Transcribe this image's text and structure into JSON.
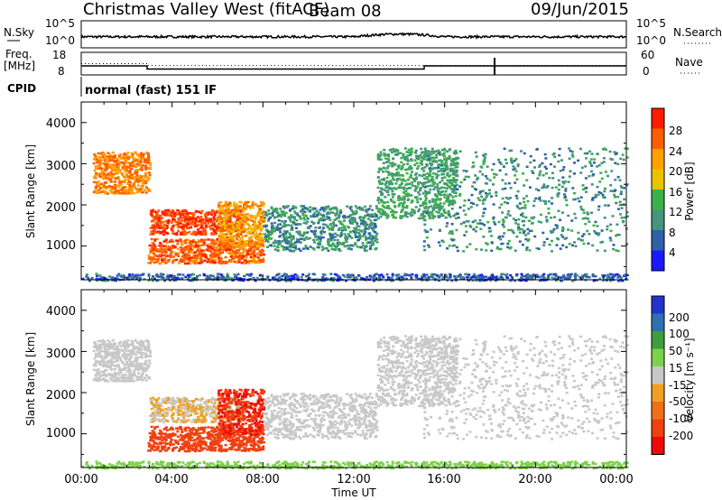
{
  "header": {
    "station": "Christmas Valley West (fitACF)",
    "beam": "Beam 08",
    "date": "09/Jun/2015"
  },
  "noise_panel": {
    "left_label": "N.Sky",
    "right_label": "N.Search",
    "tick_hi": "10^5",
    "tick_lo": "10^0",
    "right_tick_hi": "10^5",
    "right_tick_lo": "10^0"
  },
  "freq_panel": {
    "left_label_line1": "Freq.",
    "left_label_line2": "[MHz]",
    "right_label": "Nave",
    "left_ticks": [
      "18",
      "8"
    ],
    "right_ticks": [
      "60",
      "0"
    ]
  },
  "cpid_panel": {
    "label": "CPID",
    "mode_text": "normal (fast) 151 IF"
  },
  "panels": [
    {
      "name": "power",
      "colorbar_label": "Power [dB]",
      "colorbar_ticks": [
        "28",
        "24",
        "20",
        "16",
        "12",
        "8",
        "4"
      ],
      "colors": [
        "#ff1c00",
        "#ff5e00",
        "#ffa000",
        "#e8c400",
        "#3cb14a",
        "#45947c",
        "#2e61a8",
        "#1a1aff"
      ]
    },
    {
      "name": "velocity",
      "colorbar_label": "Velocity [m s⁻¹]",
      "colorbar_ticks": [
        "200",
        "100",
        "50",
        "15",
        "-15",
        "-50",
        "-100",
        "-200"
      ],
      "colors": [
        "#2233cc",
        "#3070b0",
        "#3e9e3e",
        "#7cd24a",
        "#c8c8c8",
        "#f0a020",
        "#f07018",
        "#f04010",
        "#ee0a0a"
      ]
    }
  ],
  "axes": {
    "ylabel": "Slant Range [km]",
    "xlabel": "Time UT",
    "yticks": [
      "4000",
      "3000",
      "2000",
      "1000"
    ],
    "xticks": [
      "00:00",
      "04:00",
      "08:00",
      "12:00",
      "16:00",
      "20:00",
      "00:00"
    ]
  },
  "chart_data": {
    "type": "heatmap",
    "x_range_hours_ut": [
      0,
      24
    ],
    "y_range_km": [
      180,
      4500
    ],
    "frequency_mhz": [
      {
        "t": [
          0,
          2.9
        ],
        "value": 12.0
      },
      {
        "t": [
          2.9,
          15.1
        ],
        "value": 10.6
      },
      {
        "t": [
          15.1,
          24
        ],
        "value": 12.0
      }
    ],
    "nave": [
      {
        "t": [
          0,
          2.9
        ],
        "value": 30
      },
      {
        "t": [
          2.9,
          24
        ],
        "value": 25
      }
    ],
    "echo_regions": [
      {
        "t": [
          0.5,
          3.0
        ],
        "range_km": [
          2300,
          3300
        ],
        "power_db": 24,
        "velocity_ms": 0
      },
      {
        "t": [
          3.0,
          7.0
        ],
        "range_km": [
          1300,
          1900
        ],
        "power_db": 28,
        "velocity_ms": -15
      },
      {
        "t": [
          2.9,
          8.0
        ],
        "range_km": [
          600,
          1200
        ],
        "power_db": 26,
        "velocity_ms": -120
      },
      {
        "t": [
          6.0,
          8.0
        ],
        "range_km": [
          1000,
          2100
        ],
        "power_db": 22,
        "velocity_ms": -200
      },
      {
        "t": [
          8.0,
          13.0
        ],
        "range_km": [
          900,
          2000
        ],
        "power_db": 10,
        "velocity_ms": 0
      },
      {
        "t": [
          13.0,
          16.5
        ],
        "range_km": [
          1700,
          3400
        ],
        "power_db": 12,
        "velocity_ms": 0
      },
      {
        "t": [
          15.0,
          24.0
        ],
        "range_km": [
          900,
          3400
        ],
        "power_db": 10,
        "velocity_ms": 0
      },
      {
        "t": [
          0,
          24
        ],
        "range_km": [
          180,
          350
        ],
        "power_db": 6,
        "velocity_ms": 30
      }
    ]
  }
}
